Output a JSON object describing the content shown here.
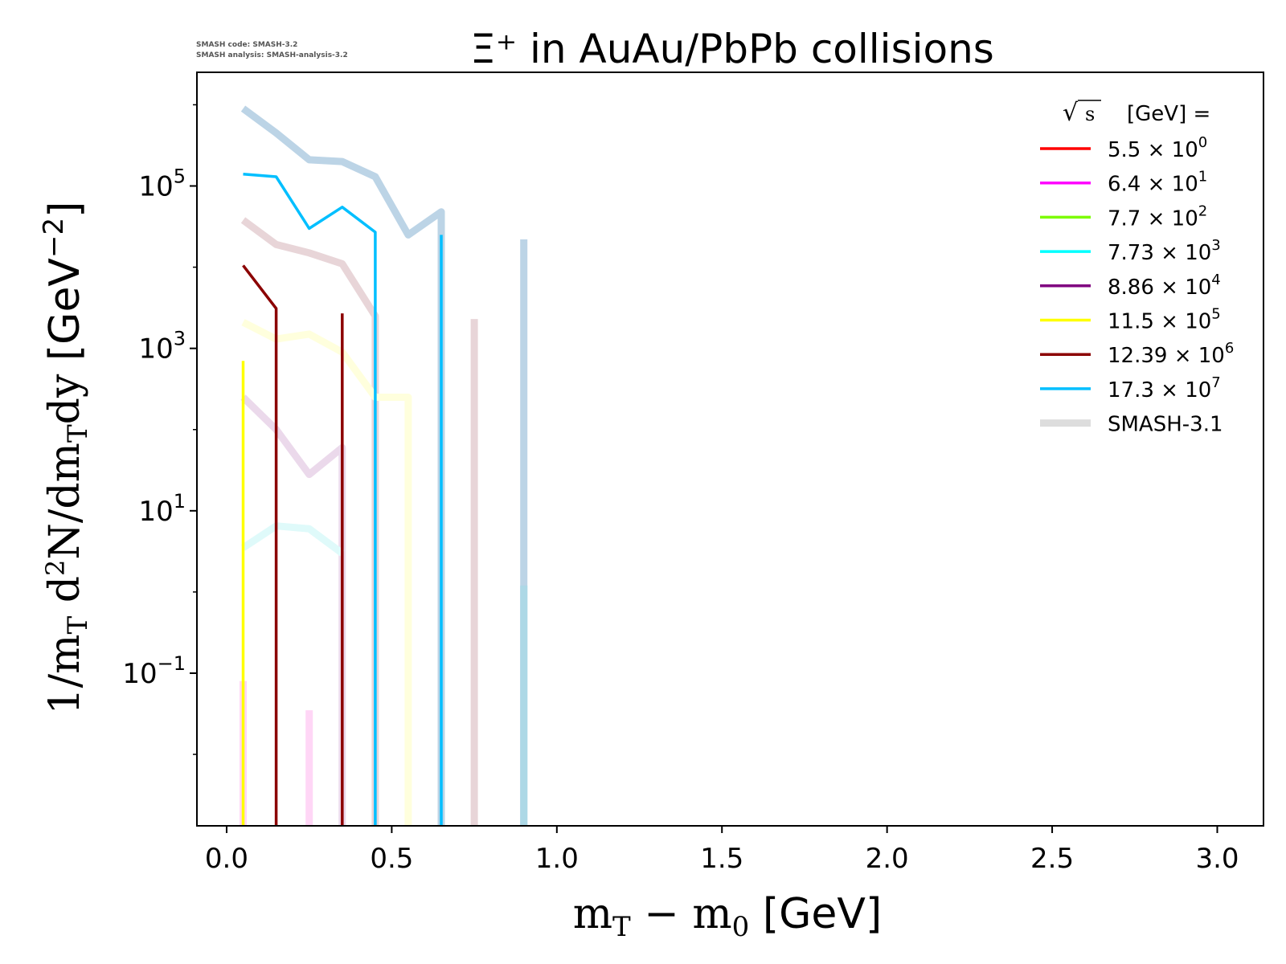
{
  "code_info": {
    "line1": "SMASH code:      SMASH-3.2",
    "line2": "SMASH analysis: SMASH-analysis-3.2"
  },
  "chart_data": {
    "type": "line",
    "title": "Ξ⁺ in AuAu/PbPb collisions",
    "xlabel": "m_T − m_0 [GeV]",
    "ylabel": "1/m_T d²N/dm_T dy [GeV⁻²]",
    "xlim": [
      -0.09,
      3.14
    ],
    "ylim_log10": [
      -2.88,
      6.4
    ],
    "yscale": "log",
    "x_ticks": [
      "0.0",
      "0.5",
      "1.0",
      "1.5",
      "2.0",
      "2.5",
      "3.0"
    ],
    "y_ticks": [
      {
        "exp": -1,
        "base": "10",
        "power": "−1"
      },
      {
        "exp": 1,
        "base": "10",
        "power": "1"
      },
      {
        "exp": 3,
        "base": "10",
        "power": "3"
      },
      {
        "exp": 5,
        "base": "10",
        "power": "5"
      }
    ],
    "grid": false,
    "legend": {
      "position": "top-right",
      "title": "√s  [GeV] =",
      "entries": [
        {
          "mantissa": "5.5",
          "power": "0",
          "color": "#ff0000"
        },
        {
          "mantissa": "6.4",
          "power": "1",
          "color": "#ff00ff"
        },
        {
          "mantissa": "7.7",
          "power": "2",
          "color": "#7cfc00"
        },
        {
          "mantissa": "7.73",
          "power": "3",
          "color": "#00ffff"
        },
        {
          "mantissa": "8.86",
          "power": "4",
          "color": "#800080"
        },
        {
          "mantissa": "11.5",
          "power": "5",
          "color": "#ffff00"
        },
        {
          "mantissa": "12.39",
          "power": "6",
          "color": "#8b0000"
        },
        {
          "mantissa": "17.3",
          "power": "7",
          "color": "#00bfff"
        }
      ],
      "reference_label": "SMASH-3.1",
      "reference_color": "#dddddd"
    },
    "series": [
      {
        "color": "#bcd4e6",
        "style": "thick",
        "x": [
          0.05,
          0.15,
          0.25,
          0.35,
          0.45,
          0.55,
          0.65,
          0.65
        ],
        "y": [
          900000,
          450000,
          210000,
          200000,
          130000,
          25000,
          48000,
          0.001
        ]
      },
      {
        "color": "#bcd4e6",
        "style": "thick",
        "x": [
          0.9,
          0.9
        ],
        "y": [
          22000,
          0.001
        ]
      },
      {
        "color": "#add8e6",
        "style": "thick",
        "x": [
          0.9,
          0.9
        ],
        "y": [
          1.2,
          0.001
        ]
      },
      {
        "color": "#e8d5d8",
        "style": "thick",
        "x": [
          0.05,
          0.15,
          0.25,
          0.35,
          0.45,
          0.45
        ],
        "y": [
          38000,
          19000,
          15000,
          11000,
          2500,
          0.001
        ]
      },
      {
        "color": "#e8d5d8",
        "style": "thick",
        "x": [
          0.75,
          0.75
        ],
        "y": [
          2300,
          0.001
        ]
      },
      {
        "color": "#ffffdd",
        "style": "thick",
        "x": [
          0.05,
          0.15,
          0.25,
          0.35,
          0.45,
          0.55,
          0.55
        ],
        "y": [
          2100,
          1300,
          1500,
          900,
          250,
          250,
          0.001
        ]
      },
      {
        "color": "#ebd9eb",
        "style": "thick",
        "x": [
          0.05,
          0.15,
          0.25,
          0.35,
          0.35
        ],
        "y": [
          250,
          100,
          28,
          60,
          0.001
        ]
      },
      {
        "color": "#dffafa",
        "style": "thick",
        "x": [
          0.05,
          0.15,
          0.25,
          0.35
        ],
        "y": [
          3.5,
          6.5,
          6.0,
          3.0
        ]
      },
      {
        "color": "#ffd6f6",
        "style": "thick",
        "x": [
          0.05,
          0.05
        ],
        "y": [
          0.08,
          0.001
        ]
      },
      {
        "color": "#ffd6f6",
        "style": "thick",
        "x": [
          0.25,
          0.25
        ],
        "y": [
          0.035,
          0.001
        ]
      },
      {
        "color": "#00bfff",
        "style": "thin",
        "x": [
          0.05,
          0.15,
          0.25,
          0.35,
          0.45,
          0.45
        ],
        "y": [
          140000,
          130000,
          30000,
          55000,
          27000,
          0.001
        ]
      },
      {
        "color": "#00bfff",
        "style": "thin",
        "x": [
          0.65,
          0.65
        ],
        "y": [
          25000,
          0.001
        ]
      },
      {
        "color": "#8b0000",
        "style": "thin",
        "x": [
          0.05,
          0.15,
          0.15
        ],
        "y": [
          10500,
          3100,
          0.001
        ]
      },
      {
        "color": "#8b0000",
        "style": "thin",
        "x": [
          0.35,
          0.35
        ],
        "y": [
          2700,
          0.001
        ]
      },
      {
        "color": "#ffff00",
        "style": "thin",
        "x": [
          0.05,
          0.05
        ],
        "y": [
          700,
          0.001
        ]
      }
    ]
  }
}
